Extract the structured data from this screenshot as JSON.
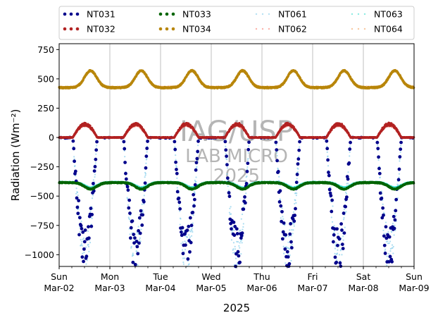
{
  "chart_data": {
    "type": "scatter",
    "title": "",
    "xlabel": "2025",
    "ylabel": "Radiation (Wm⁻²)",
    "ylim": [
      -1100,
      800
    ],
    "yticks": [
      800,
      750,
      500,
      250,
      0,
      -250,
      -500,
      -750,
      -1000
    ],
    "ytick_labels": [
      "750",
      "500",
      "250",
      "0",
      "−250",
      "−500",
      "−750",
      "−1000"
    ],
    "ytick_values": [
      750,
      500,
      250,
      0,
      -250,
      -500,
      -750,
      -1000
    ],
    "xlim": [
      "2025-03-02",
      "2025-03-09"
    ],
    "xticks": [
      {
        "day": "Sun",
        "date": "Mar-02"
      },
      {
        "day": "Mon",
        "date": "Mar-03"
      },
      {
        "day": "Tue",
        "date": "Mar-04"
      },
      {
        "day": "Wed",
        "date": "Mar-05"
      },
      {
        "day": "Thu",
        "date": "Mar-06"
      },
      {
        "day": "Fri",
        "date": "Mar-07"
      },
      {
        "day": "Sat",
        "date": "Mar-08"
      },
      {
        "day": "Sun",
        "date": "Mar-09"
      }
    ],
    "grid": "vertical",
    "legend_placement": "top",
    "watermark": [
      "IAG/USP",
      "LAB MICRO",
      "2025"
    ],
    "series": [
      {
        "name": "NT031",
        "color": "#00008b",
        "style": "dots",
        "baseline": 0,
        "amplitude": -1040,
        "kind": "solar-negative"
      },
      {
        "name": "NT032",
        "color": "#b22222",
        "style": "dots",
        "baseline": 0,
        "amplitude": 120,
        "kind": "solar-positive"
      },
      {
        "name": "NT033",
        "color": "#006400",
        "style": "dots",
        "baseline": -385,
        "amplitude": -55,
        "kind": "longwave-dip"
      },
      {
        "name": "NT034",
        "color": "#b8860b",
        "style": "dots",
        "baseline": 425,
        "amplitude": 145,
        "kind": "longwave-bump"
      },
      {
        "name": "NT061",
        "color": "#87ceeb",
        "style": "dotted",
        "baseline": 0,
        "amplitude": -1060,
        "kind": "solar-negative"
      },
      {
        "name": "NT062",
        "color": "#fa8072",
        "style": "dotted",
        "baseline": 0,
        "amplitude": 110,
        "kind": "solar-positive"
      },
      {
        "name": "NT063",
        "color": "#40e0d0",
        "style": "dotted",
        "baseline": -380,
        "amplitude": -45,
        "kind": "longwave-dip"
      },
      {
        "name": "NT064",
        "color": "#f4a460",
        "style": "dotted",
        "baseline": 430,
        "amplitude": 140,
        "kind": "longwave-bump"
      }
    ]
  }
}
